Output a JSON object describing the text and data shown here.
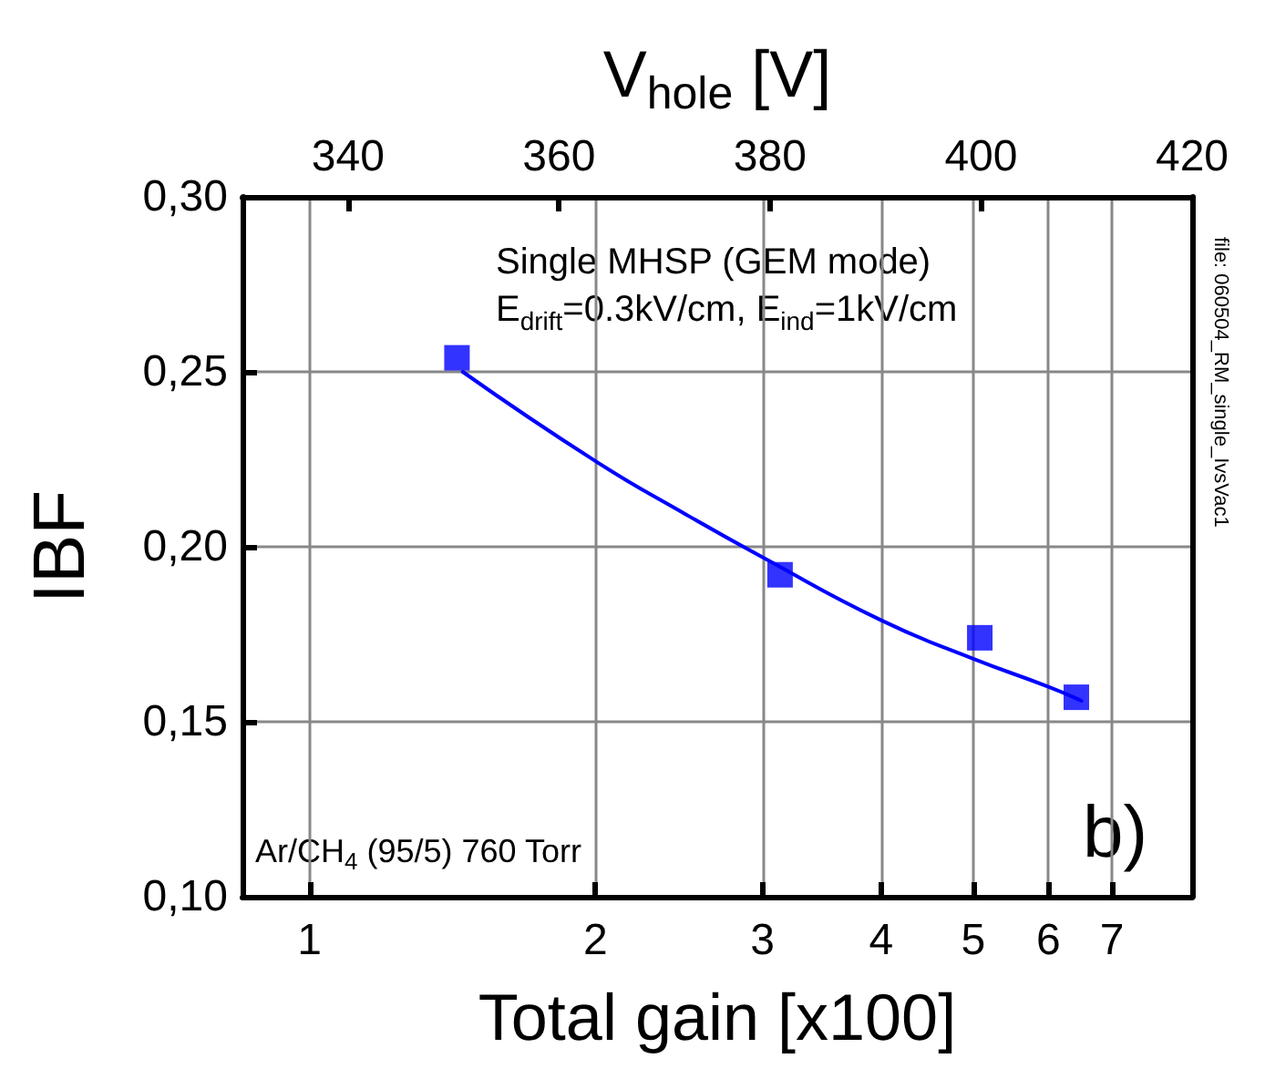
{
  "chart_data": {
    "type": "scatter",
    "xlabel": "Total gain [x100]",
    "ylabel": "IBF",
    "x2label": "V$_{hole}$ [V]",
    "log": "x",
    "xlim": [
      0.85,
      8.5
    ],
    "xticks": [
      1,
      2,
      3,
      4,
      5,
      6,
      7
    ],
    "x2lim": [
      330,
      420
    ],
    "x2ticks": [
      340,
      360,
      380,
      400,
      420
    ],
    "ylim": [
      0.1,
      0.3
    ],
    "yticks": [
      {
        "value": 0.1,
        "label": "0,10"
      },
      {
        "value": 0.15,
        "label": "0,15"
      },
      {
        "value": 0.2,
        "label": "0,20"
      },
      {
        "value": 0.25,
        "label": "0,25"
      },
      {
        "value": 0.3,
        "label": "0,30"
      }
    ],
    "grid": true,
    "series": [
      {
        "marker": "square",
        "color": "#0000ff",
        "x": [
          1.43,
          3.13,
          5.08,
          6.42
        ],
        "values": [
          0.254,
          0.192,
          0.174,
          0.157
        ]
      },
      {
        "type": "line",
        "marker": "none",
        "line_style": "solid",
        "color": "#0000ff",
        "x": [
          1.45,
          2,
          2.5,
          3,
          4,
          5,
          6,
          6.5
        ],
        "values": [
          0.25,
          0.2245,
          0.209,
          0.197,
          0.179,
          0.168,
          0.16,
          0.156
        ]
      }
    ],
    "annotations": [
      "Single MHSP (GEM mode)",
      "E$_{drift}$=0.3kV/cm, E$_{ind}$=1kV/cm",
      "Ar/CH$_{4}$ (95/5) 760 Torr",
      "b)",
      "file: 060504_RM_single_IvsVac1"
    ]
  }
}
